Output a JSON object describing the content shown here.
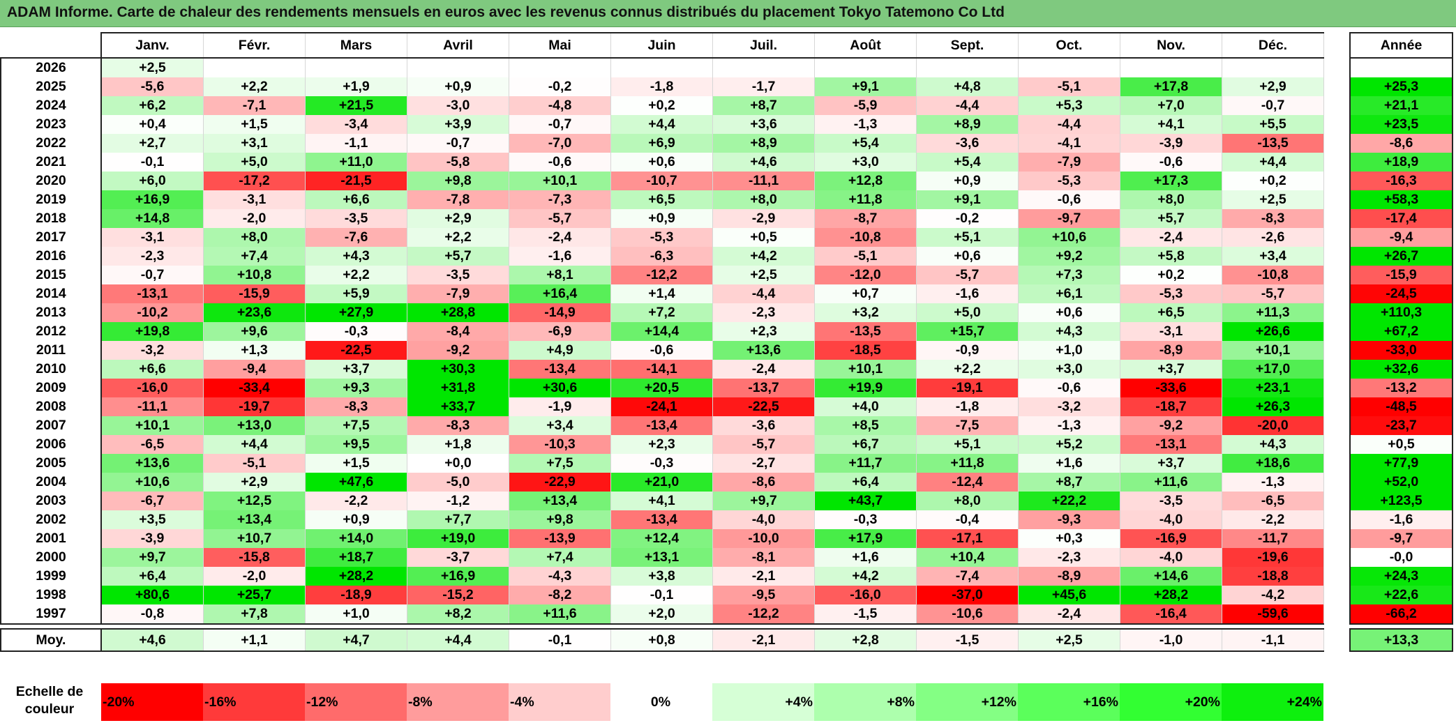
{
  "title": "ADAM Informe. Carte de chaleur des rendements mensuels en euros avec les revenus connus distribués du placement Tokyo Tatemono Co Ltd",
  "chart_data": {
    "type": "heatmap",
    "title": "ADAM Informe. Carte de chaleur des rendements mensuels en euros avec les revenus connus distribués du placement Tokyo Tatemono Co Ltd",
    "columns": [
      "Janv.",
      "Févr.",
      "Mars",
      "Avril",
      "Mai",
      "Juin",
      "Juil.",
      "Août",
      "Sept.",
      "Oct.",
      "Nov.",
      "Déc."
    ],
    "year_column": "Année",
    "rows": [
      {
        "year": "2026",
        "values": [
          "+2,5",
          "",
          "",
          "",
          "",
          "",
          "",
          "",
          "",
          "",
          "",
          ""
        ],
        "annual": ""
      },
      {
        "year": "2025",
        "values": [
          "-5,6",
          "+2,2",
          "+1,9",
          "+0,9",
          "-0,2",
          "-1,8",
          "-1,7",
          "+9,1",
          "+4,8",
          "-5,1",
          "+17,8",
          "+2,9"
        ],
        "annual": "+25,3"
      },
      {
        "year": "2024",
        "values": [
          "+6,2",
          "-7,1",
          "+21,5",
          "-3,0",
          "-4,8",
          "+0,2",
          "+8,7",
          "-5,9",
          "-4,4",
          "+5,3",
          "+7,0",
          "-0,7"
        ],
        "annual": "+21,1"
      },
      {
        "year": "2023",
        "values": [
          "+0,4",
          "+1,5",
          "-3,4",
          "+3,9",
          "-0,7",
          "+4,4",
          "+3,6",
          "-1,3",
          "+8,9",
          "-4,4",
          "+4,1",
          "+5,5"
        ],
        "annual": "+23,5"
      },
      {
        "year": "2022",
        "values": [
          "+2,7",
          "+3,1",
          "-1,1",
          "-0,7",
          "-7,0",
          "+6,9",
          "+8,9",
          "+5,4",
          "-3,6",
          "-4,1",
          "-3,9",
          "-13,5"
        ],
        "annual": "-8,6"
      },
      {
        "year": "2021",
        "values": [
          "-0,1",
          "+5,0",
          "+11,0",
          "-5,8",
          "-0,6",
          "+0,6",
          "+4,6",
          "+3,0",
          "+5,4",
          "-7,9",
          "-0,6",
          "+4,4"
        ],
        "annual": "+18,9"
      },
      {
        "year": "2020",
        "values": [
          "+6,0",
          "-17,2",
          "-21,5",
          "+9,8",
          "+10,1",
          "-10,7",
          "-11,1",
          "+12,8",
          "+0,9",
          "-5,3",
          "+17,3",
          "+0,2"
        ],
        "annual": "-16,3"
      },
      {
        "year": "2019",
        "values": [
          "+16,9",
          "-3,1",
          "+6,6",
          "-7,8",
          "-7,3",
          "+6,5",
          "+8,0",
          "+11,8",
          "+9,1",
          "-0,6",
          "+8,0",
          "+2,5"
        ],
        "annual": "+58,3"
      },
      {
        "year": "2018",
        "values": [
          "+14,8",
          "-2,0",
          "-3,5",
          "+2,9",
          "-5,7",
          "+0,9",
          "-2,9",
          "-8,7",
          "-0,2",
          "-9,7",
          "+5,7",
          "-8,3"
        ],
        "annual": "-17,4"
      },
      {
        "year": "2017",
        "values": [
          "-3,1",
          "+8,0",
          "-7,6",
          "+2,2",
          "-2,4",
          "-5,3",
          "+0,5",
          "-10,8",
          "+5,1",
          "+10,6",
          "-2,4",
          "-2,6"
        ],
        "annual": "-9,4"
      },
      {
        "year": "2016",
        "values": [
          "-2,3",
          "+7,4",
          "+4,3",
          "+5,7",
          "-1,6",
          "-6,3",
          "+4,2",
          "-5,1",
          "+0,6",
          "+9,2",
          "+5,8",
          "+3,4"
        ],
        "annual": "+26,7"
      },
      {
        "year": "2015",
        "values": [
          "-0,7",
          "+10,8",
          "+2,2",
          "-3,5",
          "+8,1",
          "-12,2",
          "+2,5",
          "-12,0",
          "-5,7",
          "+7,3",
          "+0,2",
          "-10,8"
        ],
        "annual": "-15,9"
      },
      {
        "year": "2014",
        "values": [
          "-13,1",
          "-15,9",
          "+5,9",
          "-7,9",
          "+16,4",
          "+1,4",
          "-4,4",
          "+0,7",
          "-1,6",
          "+6,1",
          "-5,3",
          "-5,7"
        ],
        "annual": "-24,5"
      },
      {
        "year": "2013",
        "values": [
          "-10,2",
          "+23,6",
          "+27,9",
          "+28,8",
          "-14,9",
          "+7,2",
          "-2,3",
          "+3,2",
          "+5,0",
          "+0,6",
          "+6,5",
          "+11,3"
        ],
        "annual": "+110,3"
      },
      {
        "year": "2012",
        "values": [
          "+19,8",
          "+9,6",
          "-0,3",
          "-8,4",
          "-6,9",
          "+14,4",
          "+2,3",
          "-13,5",
          "+15,7",
          "+4,3",
          "-3,1",
          "+26,6"
        ],
        "annual": "+67,2"
      },
      {
        "year": "2011",
        "values": [
          "-3,2",
          "+1,3",
          "-22,5",
          "-9,2",
          "+4,9",
          "-0,6",
          "+13,6",
          "-18,5",
          "-0,9",
          "+1,0",
          "-8,9",
          "+10,1"
        ],
        "annual": "-33,0"
      },
      {
        "year": "2010",
        "values": [
          "+6,6",
          "-9,4",
          "+3,7",
          "+30,3",
          "-13,4",
          "-14,1",
          "-2,4",
          "+10,1",
          "+2,2",
          "+3,0",
          "+3,7",
          "+17,0"
        ],
        "annual": "+32,6"
      },
      {
        "year": "2009",
        "values": [
          "-16,0",
          "-33,4",
          "+9,3",
          "+31,8",
          "+30,6",
          "+20,5",
          "-13,7",
          "+19,9",
          "-19,1",
          "-0,6",
          "-33,6",
          "+23,1"
        ],
        "annual": "-13,2"
      },
      {
        "year": "2008",
        "values": [
          "-11,1",
          "-19,7",
          "-8,3",
          "+33,7",
          "-1,9",
          "-24,1",
          "-22,5",
          "+4,0",
          "-1,8",
          "-3,2",
          "-18,7",
          "+26,3"
        ],
        "annual": "-48,5"
      },
      {
        "year": "2007",
        "values": [
          "+10,1",
          "+13,0",
          "+7,5",
          "-8,3",
          "+3,4",
          "-13,4",
          "-3,6",
          "+8,5",
          "-7,5",
          "-1,3",
          "-9,2",
          "-20,0"
        ],
        "annual": "-23,7"
      },
      {
        "year": "2006",
        "values": [
          "-6,5",
          "+4,4",
          "+9,5",
          "+1,8",
          "-10,3",
          "+2,3",
          "-5,7",
          "+6,7",
          "+5,1",
          "+5,2",
          "-13,1",
          "+4,3"
        ],
        "annual": "+0,5"
      },
      {
        "year": "2005",
        "values": [
          "+13,6",
          "-5,1",
          "+1,5",
          "+0,0",
          "+7,5",
          "-0,3",
          "-2,7",
          "+11,7",
          "+11,8",
          "+1,6",
          "+3,7",
          "+18,6"
        ],
        "annual": "+77,9"
      },
      {
        "year": "2004",
        "values": [
          "+10,6",
          "+2,9",
          "+47,6",
          "-5,0",
          "-22,9",
          "+21,0",
          "-8,6",
          "+6,4",
          "-12,4",
          "+8,7",
          "+11,6",
          "-1,3"
        ],
        "annual": "+52,0"
      },
      {
        "year": "2003",
        "values": [
          "-6,7",
          "+12,5",
          "-2,2",
          "-1,2",
          "+13,4",
          "+4,1",
          "+9,7",
          "+43,7",
          "+8,0",
          "+22,2",
          "-3,5",
          "-6,5"
        ],
        "annual": "+123,5"
      },
      {
        "year": "2002",
        "values": [
          "+3,5",
          "+13,4",
          "+0,9",
          "+7,7",
          "+9,8",
          "-13,4",
          "-4,0",
          "-0,3",
          "-0,4",
          "-9,3",
          "-4,0",
          "-2,2"
        ],
        "annual": "-1,6"
      },
      {
        "year": "2001",
        "values": [
          "-3,9",
          "+10,7",
          "+14,0",
          "+19,0",
          "-13,9",
          "+12,4",
          "-10,0",
          "+17,9",
          "-17,1",
          "+0,3",
          "-16,9",
          "-11,7"
        ],
        "annual": "-9,7"
      },
      {
        "year": "2000",
        "values": [
          "+9,7",
          "-15,8",
          "+18,7",
          "-3,7",
          "+7,4",
          "+13,1",
          "-8,1",
          "+1,6",
          "+10,4",
          "-2,3",
          "-4,0",
          "-19,6"
        ],
        "annual": "-0,0"
      },
      {
        "year": "1999",
        "values": [
          "+6,4",
          "-2,0",
          "+28,2",
          "+16,9",
          "-4,3",
          "+3,8",
          "-2,1",
          "+4,2",
          "-7,4",
          "-8,9",
          "+14,6",
          "-18,8"
        ],
        "annual": "+24,3"
      },
      {
        "year": "1998",
        "values": [
          "+80,6",
          "+25,7",
          "-18,9",
          "-15,2",
          "-8,2",
          "-0,1",
          "-9,5",
          "-16,0",
          "-37,0",
          "+45,6",
          "+28,2",
          "-4,2"
        ],
        "annual": "+22,6"
      },
      {
        "year": "1997",
        "values": [
          "-0,8",
          "+7,8",
          "+1,0",
          "+8,2",
          "+11,6",
          "+2,0",
          "-12,2",
          "-1,5",
          "-10,6",
          "-2,4",
          "-16,4",
          "-59,6"
        ],
        "annual": "-66,2"
      }
    ],
    "average": {
      "label": "Moy.",
      "values": [
        "+4,6",
        "+1,1",
        "+4,7",
        "+4,4",
        "-0,1",
        "+0,8",
        "-2,1",
        "+2,8",
        "-1,5",
        "+2,5",
        "-1,0",
        "-1,1"
      ],
      "annual": "+13,3"
    },
    "scale": {
      "label_line1": "Echelle de",
      "label_line2": "couleur",
      "steps": [
        {
          "label": "-20%",
          "value": -20,
          "color": "#ff0000"
        },
        {
          "label": "-16%",
          "value": -16,
          "color": "#ff3a3a"
        },
        {
          "label": "-12%",
          "value": -12,
          "color": "#ff6b6b"
        },
        {
          "label": "-8%",
          "value": -8,
          "color": "#ff9c9c"
        },
        {
          "label": "-4%",
          "value": -4,
          "color": "#ffcdcd"
        },
        {
          "label": "0%",
          "value": 0,
          "color": "#ffffff"
        },
        {
          "label": "+4%",
          "value": 4,
          "color": "#d6ffd6"
        },
        {
          "label": "+8%",
          "value": 8,
          "color": "#adffad"
        },
        {
          "label": "+12%",
          "value": 12,
          "color": "#84ff84"
        },
        {
          "label": "+16%",
          "value": 16,
          "color": "#5bff5b"
        },
        {
          "label": "+20%",
          "value": 20,
          "color": "#32ff32"
        },
        {
          "label": "+24%",
          "value": 24,
          "color": "#0ef00e"
        }
      ]
    },
    "colors": {
      "negative_max": "#ff0000",
      "neutral": "#ffffff",
      "positive_max": "#00e600",
      "title_bar": "#7fc97f"
    }
  }
}
